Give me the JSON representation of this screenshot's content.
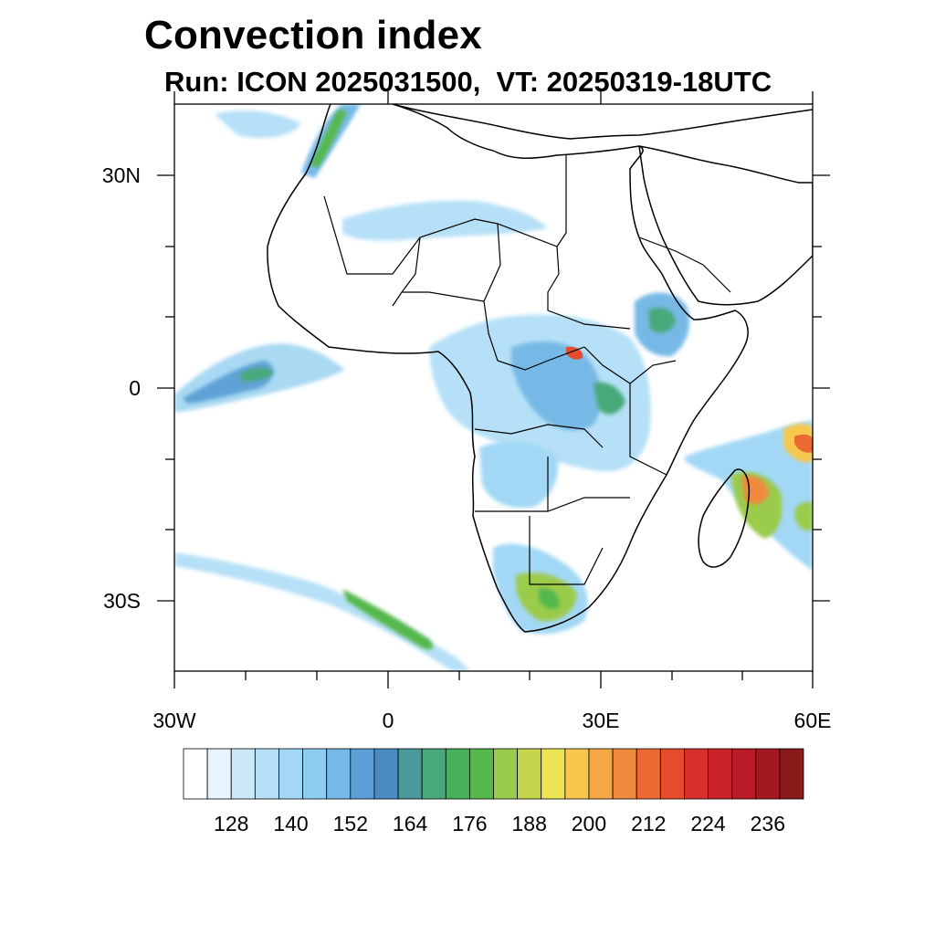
{
  "header": {
    "title": "Convection index",
    "subtitle": "Run: ICON 2025031500,  VT: 20250319-18UTC"
  },
  "map": {
    "extent_lon": [
      -30,
      60
    ],
    "extent_lat": [
      -40,
      40
    ],
    "region": "Africa",
    "land_fill": "#ffffff",
    "coast_color": "#000000",
    "lat_labels": [
      "30N",
      "0",
      "30S"
    ],
    "lon_labels": [
      "30W",
      "0",
      "30E",
      "60E"
    ],
    "field": "Convection index (shaded)"
  },
  "colorbar": {
    "labels": [
      "128",
      "140",
      "152",
      "164",
      "176",
      "188",
      "200",
      "212",
      "224",
      "236"
    ],
    "colors": [
      "#ffffff",
      "#e6f4fc",
      "#cce9f8",
      "#b6e0f7",
      "#a2d8f5",
      "#8ecdf0",
      "#77b9e6",
      "#5c9fd6",
      "#4a8cc2",
      "#4a9a9a",
      "#48a97a",
      "#47b05a",
      "#55b84c",
      "#9bcb4c",
      "#c6d64c",
      "#ede356",
      "#f7c84c",
      "#f4a845",
      "#ef8a3d",
      "#eb6a34",
      "#e54c2e",
      "#d92f2c",
      "#c92229",
      "#b81b25",
      "#a21a20",
      "#8a1a1a"
    ]
  }
}
